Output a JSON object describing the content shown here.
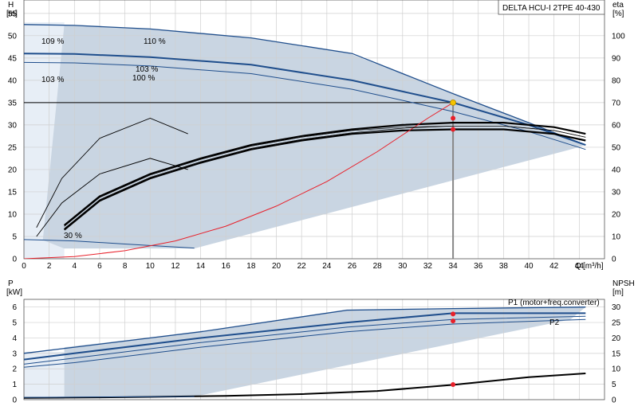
{
  "title": "DELTA HCU-I 2TPE 40-430",
  "top_chart": {
    "y_left_label": "H",
    "y_left_unit": "[m]",
    "y_right_label": "eta",
    "y_right_unit": "[%]",
    "x_label": "Q",
    "x_unit": "[m³/h]",
    "x_ticks": [
      0,
      2,
      4,
      6,
      8,
      10,
      12,
      14,
      16,
      18,
      20,
      22,
      24,
      26,
      28,
      30,
      32,
      34,
      36,
      38,
      40,
      42,
      44
    ],
    "y_left_ticks": [
      0,
      5,
      10,
      15,
      20,
      25,
      30,
      35,
      40,
      45,
      50,
      55
    ],
    "y_right_ticks": [
      0,
      10,
      20,
      30,
      40,
      50,
      60,
      70,
      80,
      90,
      100
    ],
    "annotations": [
      "109 %",
      "110 %",
      "103 %",
      "103 %",
      "100 %",
      "30 %"
    ]
  },
  "bottom_chart": {
    "y_left_label": "P",
    "y_left_unit": "[kW]",
    "y_right_label": "NPSH",
    "y_right_unit": "[m]",
    "y_left_ticks": [
      0,
      1,
      2,
      3,
      4,
      5,
      6
    ],
    "y_right_ticks": [
      0,
      5,
      10,
      15,
      20,
      25,
      30
    ],
    "series_labels": [
      "P1 (motor+freq.converter)",
      "P2"
    ]
  },
  "colors": {
    "curve_blue": "#1f4e8c",
    "area_fill": "#c9d5e2",
    "area_light": "#e7eef6",
    "efficiency": "#e8202a",
    "duty_point": "#f5c400",
    "npsh": "#000000"
  },
  "chart_data": [
    {
      "type": "line",
      "title": "DELTA HCU-I 2TPE 40-430",
      "xlabel": "Q [m³/h]",
      "ylabel": "H [m]",
      "y2label": "eta [%]",
      "xlim": [
        0,
        46
      ],
      "ylim": [
        0,
        58
      ],
      "y2lim": [
        0,
        116
      ],
      "grid": true,
      "duty_point": {
        "Q": 34,
        "H": 35
      },
      "duty_line_H": 35,
      "series": [
        {
          "name": "110 %",
          "axis": "H",
          "x": [
            0,
            4,
            10,
            18,
            26,
            34,
            40,
            44.5
          ],
          "y": [
            52.5,
            52.3,
            51.5,
            49.5,
            46,
            37,
            30.5,
            25.5
          ]
        },
        {
          "name": "103 %",
          "axis": "H",
          "x": [
            0,
            4,
            10,
            18,
            26,
            34,
            40,
            44.5
          ],
          "y": [
            46,
            45.9,
            45.2,
            43.5,
            40,
            35,
            30,
            25.5
          ]
        },
        {
          "name": "100 %",
          "axis": "H",
          "x": [
            0,
            4,
            10,
            18,
            26,
            34,
            40,
            44.5
          ],
          "y": [
            44,
            43.9,
            43.2,
            41.5,
            38,
            33,
            28.5,
            24.5
          ]
        },
        {
          "name": "30 %",
          "axis": "H",
          "x": [
            0,
            4,
            8,
            13.5
          ],
          "y": [
            4.3,
            4.0,
            3.3,
            2.4
          ]
        },
        {
          "name": "",
          "axis": "eta",
          "x": [
            3.2,
            6,
            10,
            14,
            18,
            22,
            26,
            30,
            34,
            38,
            42,
            44.5
          ],
          "y": [
            15,
            28,
            38,
            45,
            51,
            55,
            58,
            60,
            61,
            61,
            59,
            56
          ]
        },
        {
          "name": "",
          "axis": "eta",
          "x": [
            3.2,
            6,
            10,
            14,
            18,
            22,
            26,
            30,
            34,
            38,
            42,
            44.5
          ],
          "y": [
            13,
            26,
            36,
            43,
            49,
            53,
            56,
            57.5,
            58,
            58,
            56,
            53
          ]
        },
        {
          "name": "",
          "axis": "eta",
          "x": [
            1,
            3,
            6,
            10,
            13
          ],
          "y": [
            14,
            36,
            54,
            63,
            56
          ]
        },
        {
          "name": "",
          "axis": "eta",
          "x": [
            1,
            3,
            6,
            10,
            13
          ],
          "y": [
            10,
            25,
            38,
            45,
            40
          ]
        },
        {
          "name": "",
          "axis": "H",
          "x": [
            0,
            4,
            8,
            12,
            16,
            20,
            24,
            28,
            32,
            34
          ],
          "y": [
            0,
            0.5,
            1.8,
            4,
            7.3,
            11.8,
            17.3,
            24,
            31.5,
            35
          ]
        }
      ],
      "operating_points": [
        {
          "Q": 34,
          "H": 35
        },
        {
          "Q": 34,
          "H": 31.5
        },
        {
          "Q": 34,
          "H": 29
        }
      ]
    },
    {
      "type": "line",
      "xlabel": "Q [m³/h]",
      "ylabel": "P [kW]",
      "y2label": "NPSH [m]",
      "xlim": [
        0,
        46
      ],
      "ylim": [
        0,
        6.5
      ],
      "y2lim": [
        0,
        32.5
      ],
      "grid": true,
      "series": [
        {
          "name": "P1 (motor+freq.converter)",
          "axis": "P",
          "x": [
            0,
            4,
            14,
            25.6,
            34,
            44.5
          ],
          "y": [
            3.0,
            3.4,
            4.4,
            5.8,
            5.9,
            6.0
          ]
        },
        {
          "name": "",
          "axis": "P",
          "x": [
            0,
            4,
            14,
            25.6,
            34,
            44.5
          ],
          "y": [
            2.6,
            3.0,
            4.0,
            5.0,
            5.6,
            5.6
          ]
        },
        {
          "name": "",
          "axis": "P",
          "x": [
            0,
            4,
            14,
            25.6,
            34,
            44.5
          ],
          "y": [
            2.3,
            2.7,
            3.7,
            4.7,
            5.2,
            5.4
          ]
        },
        {
          "name": "P2",
          "axis": "P",
          "x": [
            0,
            4,
            14,
            25.6,
            34,
            44.5
          ],
          "y": [
            2.1,
            2.4,
            3.4,
            4.4,
            4.9,
            5.2
          ]
        },
        {
          "name": "",
          "axis": "NPSH",
          "x": [
            0,
            5,
            10,
            16,
            22,
            28,
            34,
            40,
            44.5
          ],
          "y": [
            0.6,
            0.7,
            0.9,
            1.2,
            1.8,
            2.8,
            4.8,
            7.3,
            8.5
          ]
        }
      ],
      "operating_points": [
        {
          "Q": 34,
          "P": 5.55
        },
        {
          "Q": 34,
          "P": 5.1
        },
        {
          "Q": 34,
          "NPSH": 4.9
        }
      ]
    }
  ]
}
